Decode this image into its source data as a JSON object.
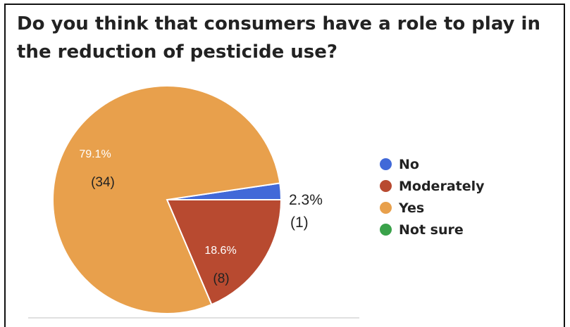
{
  "chart_data": {
    "type": "pie",
    "title": "Do you think that consumers have a role to play in the reduction of pesticide use?",
    "slices": [
      {
        "label": "No",
        "value": 1,
        "percent_label": "2.3%",
        "count_label": "(1)",
        "color": "#4169d8"
      },
      {
        "label": "Moderately",
        "value": 8,
        "percent_label": "18.6%",
        "count_label": "(8)",
        "color": "#b84a30"
      },
      {
        "label": "Yes",
        "value": 34,
        "percent_label": "79.1%",
        "count_label": "(34)",
        "color": "#e8a04c"
      },
      {
        "label": "Not sure",
        "value": 0,
        "percent_label": "",
        "count_label": "",
        "color": "#3aa24a"
      }
    ],
    "legend_position": "right"
  }
}
